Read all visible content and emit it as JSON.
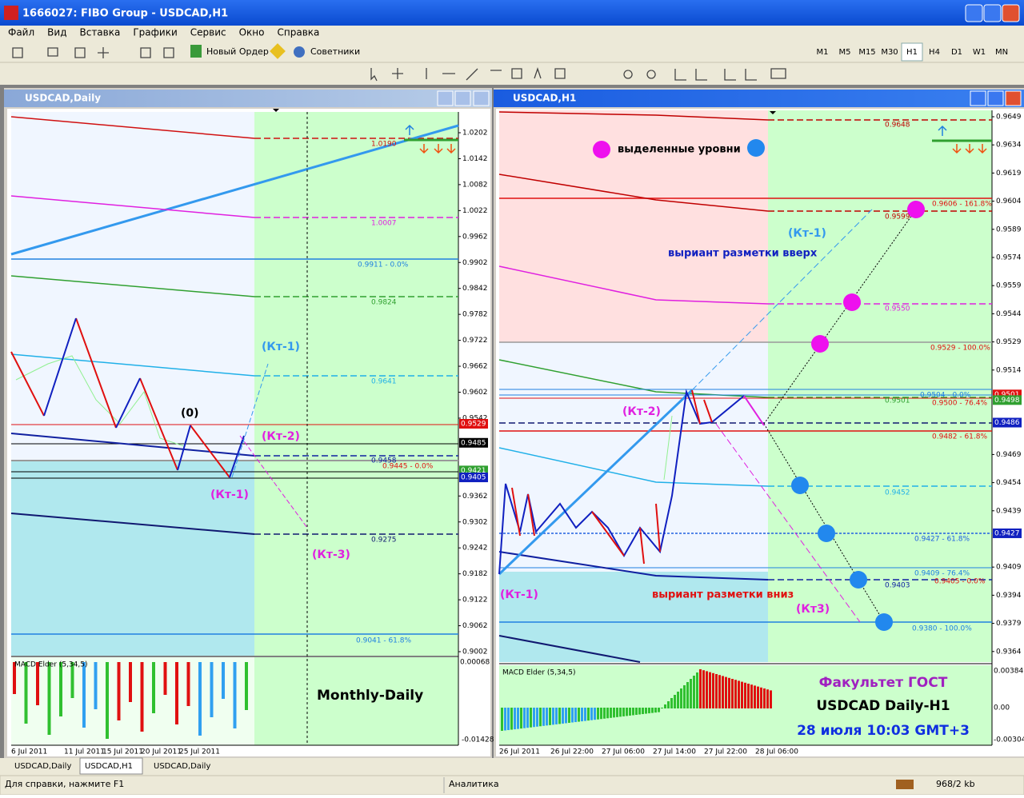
{
  "window": {
    "title": "1666027: FIBO Group - USDCAD,H1",
    "menu": [
      "Файл",
      "Вид",
      "Вставка",
      "Графики",
      "Сервис",
      "Окно",
      "Справка"
    ],
    "new_order": "Новый Ордер",
    "experts": "Советники",
    "timeframes": [
      "M1",
      "M5",
      "M15",
      "M30",
      "H1",
      "H4",
      "D1",
      "W1",
      "MN"
    ]
  },
  "left_chart": {
    "title": "USDCAD,Daily",
    "price_ticks": [
      "1.0202",
      "1.0142",
      "1.0082",
      "1.0022",
      "0.9962",
      "0.9902",
      "0.9842",
      "0.9782",
      "0.9722",
      "0.9662",
      "0.9602",
      "0.9542",
      "0.9362",
      "0.9302",
      "0.9242",
      "0.9182",
      "0.9122",
      "0.9062",
      "0.9002"
    ],
    "price_marks": [
      "0.9529",
      "0.9485",
      "0.9421",
      "0.9405"
    ],
    "levels": [
      "1.0190",
      "1.0007",
      "0.9911 - 0.0%",
      "0.9824",
      "0.9641",
      "0.9458",
      "0.9445 - 0.0%",
      "0.9275",
      "0.9041 - 61.8%"
    ],
    "annotations": [
      "(Кт-1)",
      "(0)",
      "(Кт-2)",
      "(Кт-1)",
      "(Кт-3)",
      "Monthly-Daily"
    ],
    "indicator": "MACD Elder (5,34,5)",
    "macd_ticks": [
      "0.00068",
      "-0.01428"
    ],
    "dates": [
      "6 Jul 2011",
      "11 Jul 2011",
      "15 Jul 2011",
      "20 Jul 2011",
      "25 Jul 2011"
    ]
  },
  "right_chart": {
    "title": "USDCAD,H1",
    "price_ticks": [
      "0.9649",
      "0.9634",
      "0.9619",
      "0.9604",
      "0.9589",
      "0.9574",
      "0.9559",
      "0.9544",
      "0.9529",
      "0.9514",
      "0.9469",
      "0.9454",
      "0.9439",
      "0.9409",
      "0.9394",
      "0.9379",
      "0.9364"
    ],
    "price_marks": [
      "0.9501",
      "0.9498",
      "0.9486",
      "0.9427"
    ],
    "levels": [
      "0.9648",
      "0.9606 - 161.8%",
      "0.9599",
      "0.9550",
      "0.9529 - 100.0%",
      "0.9504 - 0.0%",
      "0.9501",
      "0.9500 - 76.4%",
      "0.9482 - 61.8%",
      "0.9452",
      "0.9427 - 61.8%",
      "0.9409 - 76.4%",
      "0.9405 - 0.0%",
      "0.9403",
      "0.9380 - 100.0%"
    ],
    "annotations": [
      "выделенные уровни",
      "(Кт-1)",
      "выриант разметки вверх",
      "(Кт-2)",
      "(Кт-1)",
      "выриант разметки вниз",
      "(Кт3)",
      "Факультет ГОСТ",
      "USDCAD Daily-H1",
      "28 июля 10:03 GMT+3"
    ],
    "indicator": "MACD Elder (5,34,5)",
    "macd_ticks": [
      "0.00384",
      "0.00",
      "-0.00304"
    ],
    "dates": [
      "26 Jul 2011",
      "26 Jul 22:00",
      "27 Jul 06:00",
      "27 Jul 14:00",
      "27 Jul 22:00",
      "28 Jul 06:00"
    ]
  },
  "tabs": [
    "USDCAD,Daily",
    "USDCAD,H1",
    "USDCAD,Daily"
  ],
  "status": {
    "help": "Для справки, нажмите F1",
    "profile": "Аналитика",
    "traffic": "968/2 kb"
  }
}
